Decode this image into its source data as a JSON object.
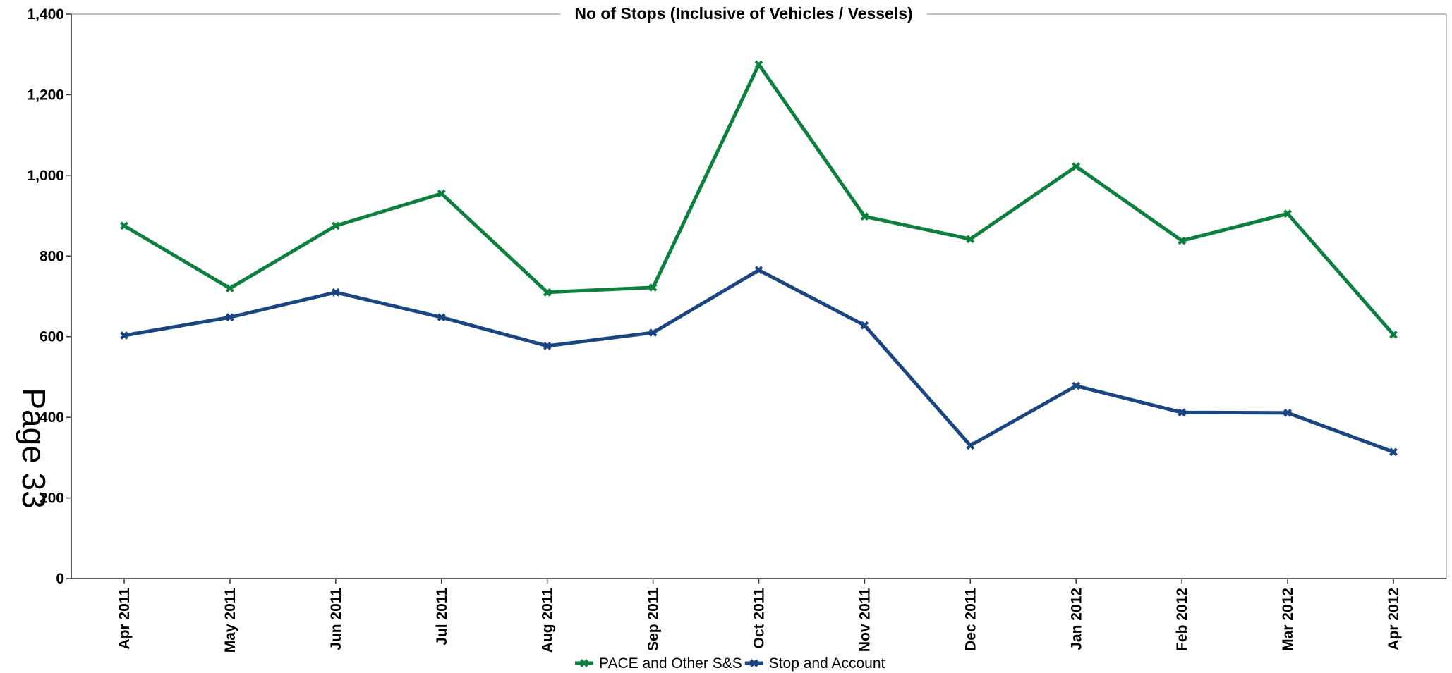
{
  "page_label": "Page 33",
  "chart_data": {
    "type": "line",
    "title": "No of Stops (Inclusive of Vehicles / Vessels)",
    "xlabel": "",
    "ylabel": "",
    "ylim": [
      0,
      1400
    ],
    "y_ticks": [
      0,
      200,
      400,
      600,
      800,
      1000,
      1200,
      1400
    ],
    "y_tick_labels": [
      "0",
      "200",
      "400",
      "600",
      "800",
      "1,000",
      "1,200",
      "1,400"
    ],
    "categories": [
      "Apr 2011",
      "May 2011",
      "Jun 2011",
      "Jul 2011",
      "Aug 2011",
      "Sep 2011",
      "Oct 2011",
      "Nov 2011",
      "Dec 2011",
      "Jan 2012",
      "Feb 2012",
      "Mar 2012",
      "Apr 2012"
    ],
    "series": [
      {
        "name": "PACE and Other S&S",
        "color": "#0d7f3f",
        "values": [
          875,
          720,
          875,
          955,
          710,
          722,
          1275,
          898,
          842,
          1022,
          838,
          905,
          605
        ]
      },
      {
        "name": "Stop and Account",
        "color": "#1b4581",
        "values": [
          603,
          648,
          710,
          648,
          577,
          610,
          765,
          628,
          330,
          478,
          412,
          411,
          314
        ]
      }
    ],
    "grid": false,
    "legend_position": "bottom"
  }
}
